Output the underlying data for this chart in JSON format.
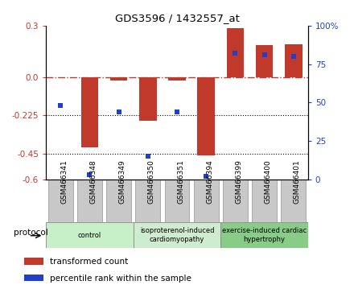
{
  "title": "GDS3596 / 1432557_at",
  "samples": [
    "GSM466341",
    "GSM466348",
    "GSM466349",
    "GSM466350",
    "GSM466351",
    "GSM466394",
    "GSM466399",
    "GSM466400",
    "GSM466401"
  ],
  "red_values": [
    0.0,
    -0.41,
    -0.02,
    -0.255,
    -0.02,
    -0.46,
    0.285,
    0.185,
    0.19
  ],
  "blue_values_pct": [
    48,
    3,
    44,
    15,
    44,
    2,
    82,
    81,
    80
  ],
  "ylim_left": [
    -0.6,
    0.3
  ],
  "ylim_right": [
    0,
    100
  ],
  "left_ticks": [
    0.3,
    0.0,
    -0.225,
    -0.45,
    -0.6
  ],
  "right_ticks": [
    100,
    75,
    50,
    25,
    0
  ],
  "hlines": [
    -0.225,
    -0.45
  ],
  "groups": [
    {
      "label": "control",
      "start": 0,
      "end": 3,
      "color": "#c8f0c8"
    },
    {
      "label": "isoproterenol-induced\ncardiomyopathy",
      "start": 3,
      "end": 6,
      "color": "#d0ecd0"
    },
    {
      "label": "exercise-induced cardiac\nhypertrophy",
      "start": 6,
      "end": 9,
      "color": "#88cc88"
    }
  ],
  "protocol_label": "protocol",
  "legend_red_label": "transformed count",
  "legend_blue_label": "percentile rank within the sample",
  "red_color": "#c0392b",
  "blue_color": "#2040cc",
  "bar_width": 0.6,
  "marker_size": 5,
  "bg_color": "#ffffff",
  "gray_box_color": "#c8c8c8",
  "gray_box_edge": "#aaaaaa"
}
